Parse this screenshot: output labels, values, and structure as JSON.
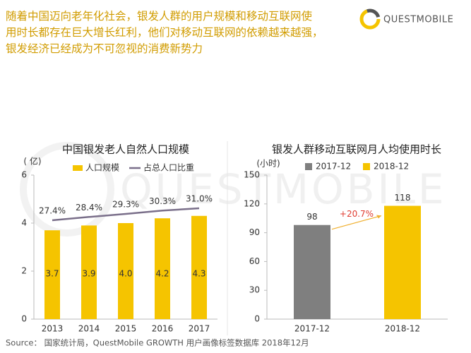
{
  "header": {
    "lines": [
      "随着中国迈向老年化社会，银发人群的用户规模和移动互联网使",
      "用时长都存在巨大增长红利，他们对移动互联网的依赖越来越强，",
      "银发经济已经成为不可忽视的消费新势力"
    ],
    "logo": "QUESTMOBILE",
    "watermark": "QUESTMOBILE"
  },
  "chart_data": [
    {
      "type": "bar_line",
      "title": "中国银发老人自然人口规模",
      "y_label": "( 亿)",
      "categories": [
        "2013",
        "2014",
        "2015",
        "2016",
        "2017"
      ],
      "ylim": [
        0,
        6
      ],
      "yticks": [
        0,
        2,
        4,
        6
      ],
      "series": [
        {
          "name": "人口规模",
          "color": "#f5c400",
          "values": [
            3.7,
            3.9,
            4.0,
            4.2,
            4.3
          ],
          "value_labels": [
            "3.7",
            "3.9",
            "4.0",
            "4.2",
            "4.3"
          ]
        },
        {
          "name": "占总人口比重",
          "color": "#7a6f8a",
          "axis": "y2",
          "values": [
            27.4,
            28.4,
            29.3,
            30.3,
            31.0
          ],
          "value_labels": [
            "27.4%",
            "28.4%",
            "29.3%",
            "30.3%",
            "31.0%"
          ]
        }
      ]
    },
    {
      "type": "bar",
      "title": "银发人群移动互联网月人均使用时长",
      "y_label": "(小时)",
      "categories": [
        "2017-12",
        "2018-12"
      ],
      "ylim": [
        0,
        150
      ],
      "yticks": [
        0,
        30,
        60,
        90,
        120,
        150
      ],
      "series": [
        {
          "name": "2017-12",
          "color": "#7f7f7f",
          "values": [
            98,
            null
          ]
        },
        {
          "name": "2018-12",
          "color": "#f5c400",
          "values": [
            null,
            118
          ]
        }
      ],
      "annotation": "+20.7%"
    }
  ],
  "footer": {
    "source": "Source： 国家统计局，QuestMobile GROWTH 用户画像标签数据库 2018年12月"
  }
}
